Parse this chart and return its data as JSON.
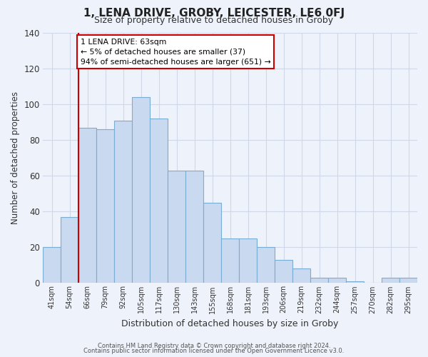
{
  "title": "1, LENA DRIVE, GROBY, LEICESTER, LE6 0FJ",
  "subtitle": "Size of property relative to detached houses in Groby",
  "xlabel": "Distribution of detached houses by size in Groby",
  "ylabel": "Number of detached properties",
  "bar_labels": [
    "41sqm",
    "54sqm",
    "66sqm",
    "79sqm",
    "92sqm",
    "105sqm",
    "117sqm",
    "130sqm",
    "143sqm",
    "155sqm",
    "168sqm",
    "181sqm",
    "193sqm",
    "206sqm",
    "219sqm",
    "232sqm",
    "244sqm",
    "257sqm",
    "270sqm",
    "282sqm",
    "295sqm"
  ],
  "bar_values": [
    20,
    37,
    87,
    86,
    91,
    104,
    92,
    63,
    63,
    45,
    25,
    25,
    20,
    13,
    8,
    3,
    3,
    1,
    0,
    3,
    3
  ],
  "bar_color": "#c9d9f0",
  "bar_edge_color": "#7aadd4",
  "grid_color": "#d0d8e8",
  "background_color": "#eef2fa",
  "vline_color": "#cc0000",
  "annotation_title": "1 LENA DRIVE: 63sqm",
  "annotation_line1": "← 5% of detached houses are smaller (37)",
  "annotation_line2": "94% of semi-detached houses are larger (651) →",
  "annotation_box_facecolor": "#ffffff",
  "annotation_border_color": "#cc0000",
  "ylim": [
    0,
    140
  ],
  "yticks": [
    0,
    20,
    40,
    60,
    80,
    100,
    120,
    140
  ],
  "footer1": "Contains HM Land Registry data © Crown copyright and database right 2024.",
  "footer2": "Contains public sector information licensed under the Open Government Licence v3.0."
}
